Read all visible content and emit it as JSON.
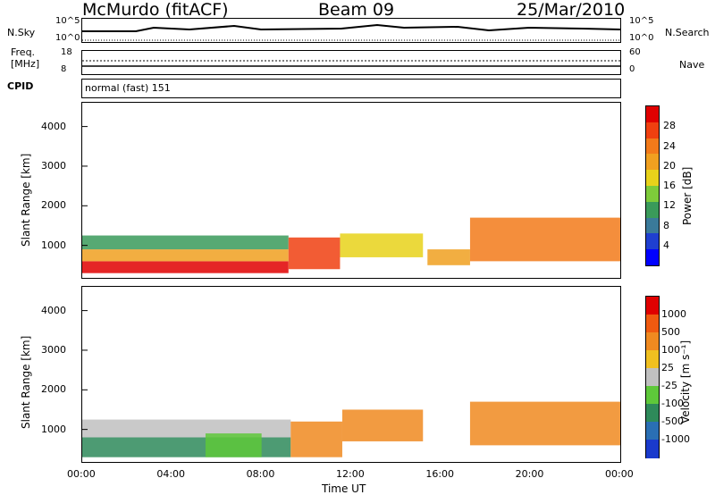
{
  "header": {
    "station": "McMurdo (fitACF)",
    "beam": "Beam 09",
    "date": "25/Mar/2010"
  },
  "top_panels": {
    "nsky_label": "N.Sky",
    "nsky_ticks": [
      "10^5",
      "10^0"
    ],
    "nsearch_label": "N.Search",
    "nsearch_ticks": [
      "10^5",
      "10^0"
    ],
    "freq_label": "Freq.",
    "freq_unit": "[MHz]",
    "freq_ticks": [
      "18",
      "8"
    ],
    "nave_label": "Nave",
    "nave_ticks": [
      "60",
      "0"
    ],
    "cpid_label": "CPID",
    "cpid_value": "normal (fast) 151"
  },
  "chart_data": [
    {
      "type": "heatmap",
      "name": "power",
      "ylabel": "Slant Range [km]",
      "ylim": [
        180,
        4600
      ],
      "yticks": [
        "4000",
        "3000",
        "2000",
        "1000"
      ],
      "colorbar_label": "Power [dB]",
      "colorbar_ticks": [
        "28",
        "24",
        "20",
        "16",
        "12",
        "8",
        "4"
      ],
      "colors": [
        "#0000ff",
        "#1f3fd0",
        "#3a7a9a",
        "#3a9a5a",
        "#7ecb3a",
        "#e8d21a",
        "#f0a020",
        "#f27a1a",
        "#f04010",
        "#e00000"
      ],
      "bands": [
        {
          "x": [
            0.0,
            9.2
          ],
          "range": [
            300,
            600
          ],
          "level": 9
        },
        {
          "x": [
            0.0,
            9.2
          ],
          "range": [
            600,
            900
          ],
          "level": 6
        },
        {
          "x": [
            0.0,
            9.2
          ],
          "range": [
            900,
            1250
          ],
          "level": 3
        },
        {
          "x": [
            9.2,
            11.5
          ],
          "range": [
            400,
            1200
          ],
          "level": 8
        },
        {
          "x": [
            11.5,
            15.2
          ],
          "range": [
            700,
            1300
          ],
          "level": 5
        },
        {
          "x": [
            15.4,
            17.3
          ],
          "range": [
            500,
            900
          ],
          "level": 6
        },
        {
          "x": [
            17.3,
            24.0
          ],
          "range": [
            600,
            1700
          ],
          "level": 7
        }
      ]
    },
    {
      "type": "heatmap",
      "name": "velocity",
      "ylabel": "Slant Range [km]",
      "xlabel": "Time UT",
      "xticks": [
        "00:00",
        "04:00",
        "08:00",
        "12:00",
        "16:00",
        "20:00",
        "00:00"
      ],
      "ylim": [
        180,
        4600
      ],
      "yticks": [
        "4000",
        "3000",
        "2000",
        "1000"
      ],
      "colorbar_label": "Velocity [m s⁻¹]",
      "colorbar_ticks": [
        "1000",
        "500",
        "100",
        "25",
        "-25",
        "-100",
        "-500",
        "-1000"
      ],
      "colors": [
        "#1a3acc",
        "#2a6fb4",
        "#2e8a5a",
        "#5ec83a",
        "#c0c0c0",
        "#f0c020",
        "#f08a20",
        "#f05a10",
        "#e00000"
      ],
      "bands": [
        {
          "x": [
            0.0,
            9.3
          ],
          "range": [
            300,
            800
          ],
          "level": 2
        },
        {
          "x": [
            0.0,
            9.3
          ],
          "range": [
            800,
            1250
          ],
          "level": 4
        },
        {
          "x": [
            5.5,
            8.0
          ],
          "range": [
            300,
            900
          ],
          "level": 3
        },
        {
          "x": [
            9.3,
            11.6
          ],
          "range": [
            300,
            1200
          ],
          "level": 6
        },
        {
          "x": [
            11.6,
            15.2
          ],
          "range": [
            700,
            1500
          ],
          "level": 6
        },
        {
          "x": [
            17.3,
            24.0
          ],
          "range": [
            600,
            1700
          ],
          "level": 6
        }
      ]
    }
  ]
}
